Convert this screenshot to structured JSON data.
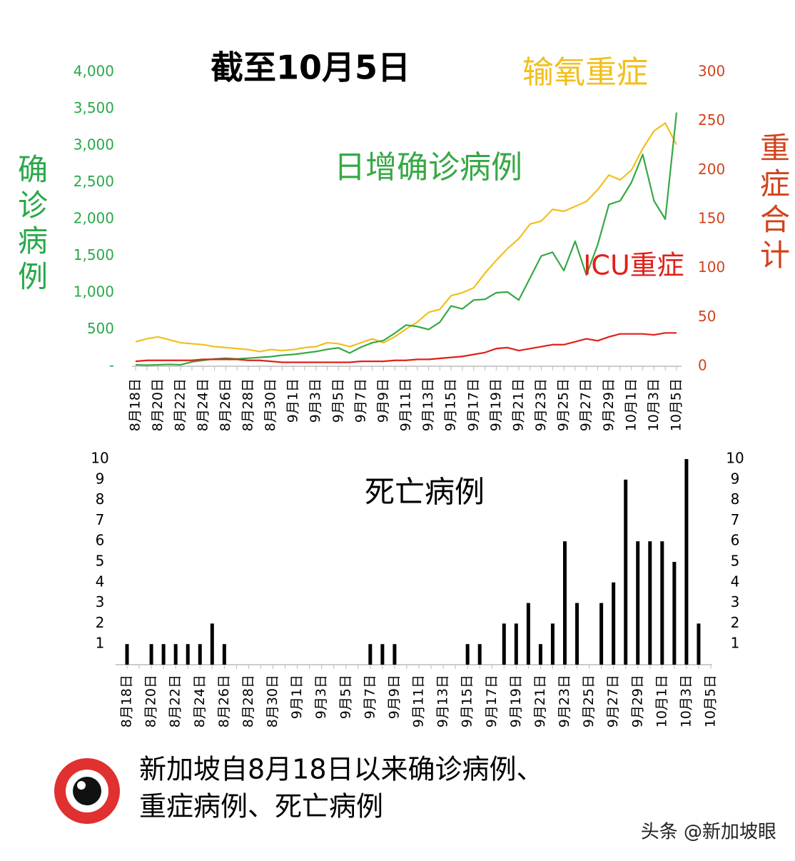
{
  "chart_data": [
    {
      "type": "line",
      "title": "截至10月5日",
      "ylabel": "确诊病例",
      "y2label": "重症合计",
      "categories": [
        "8月18日",
        null,
        "8月20日",
        null,
        "8月22日",
        null,
        "8月24日",
        null,
        "8月26日",
        null,
        "8月28日",
        null,
        "8月30日",
        null,
        "9月1日",
        null,
        "9月3日",
        null,
        "9月5日",
        null,
        "9月7日",
        null,
        "9月9日",
        null,
        "9月11日",
        null,
        "9月13日",
        null,
        "9月15日",
        null,
        "9月17日",
        null,
        "9月19日",
        null,
        "9月21日",
        null,
        "9月23日",
        null,
        "9月25日",
        null,
        "9月27日",
        null,
        "9月29日",
        null,
        "10月1日",
        null,
        "10月3日",
        null,
        "10月5日"
      ],
      "ylim": [
        0,
        4000
      ],
      "yticks": [
        {
          "value": 0,
          "label": "-"
        },
        500,
        {
          "value": 1000,
          "label": "1,000"
        },
        {
          "value": 1500,
          "label": "1,500"
        },
        {
          "value": 2000,
          "label": "2,000"
        },
        {
          "value": 2500,
          "label": "2,500"
        },
        {
          "value": 3000,
          "label": "3,000"
        },
        {
          "value": 3500,
          "label": "3,500"
        },
        {
          "value": 4000,
          "label": "4,000"
        }
      ],
      "y2lim": [
        0,
        300
      ],
      "y2ticks": [
        0,
        50,
        100,
        150,
        200,
        250,
        300
      ],
      "series": [
        {
          "name": "输氧重症",
          "color": "#f2bf1d",
          "axis": "y2",
          "values": [
            25,
            28,
            30,
            27,
            24,
            23,
            22,
            20,
            19,
            18,
            17,
            15,
            17,
            16,
            17,
            19,
            20,
            24,
            23,
            20,
            24,
            28,
            24,
            30,
            38,
            45,
            55,
            58,
            72,
            75,
            80,
            95,
            108,
            120,
            130,
            145,
            148,
            160,
            158,
            163,
            168,
            180,
            195,
            190,
            200,
            222,
            240,
            248,
            226
          ]
        },
        {
          "name": "日增确诊病例",
          "color": "#37a845",
          "values": [
            20,
            15,
            20,
            25,
            20,
            60,
            80,
            100,
            110,
            100,
            110,
            120,
            130,
            150,
            160,
            180,
            200,
            230,
            250,
            180,
            260,
            320,
            350,
            450,
            560,
            540,
            500,
            600,
            820,
            780,
            900,
            910,
            1000,
            1010,
            900,
            1200,
            1500,
            1550,
            1300,
            1700,
            1240,
            1650,
            2200,
            2250,
            2500,
            2880,
            2250,
            2000,
            3450
          ]
        },
        {
          "name": "ICU重症",
          "color": "#e0201b",
          "axis": "y2",
          "values": [
            5,
            6,
            6,
            6,
            6,
            6,
            7,
            7,
            7,
            7,
            6,
            6,
            5,
            4,
            4,
            4,
            4,
            4,
            4,
            4,
            5,
            5,
            5,
            6,
            6,
            7,
            7,
            8,
            9,
            10,
            12,
            14,
            18,
            19,
            16,
            18,
            20,
            22,
            22,
            25,
            28,
            26,
            30,
            33,
            33,
            33,
            32,
            34,
            34
          ]
        }
      ]
    },
    {
      "type": "bar",
      "title": "死亡病例",
      "color": "#000000",
      "categories": [
        "8月18日",
        null,
        "8月20日",
        null,
        "8月22日",
        null,
        "8月24日",
        null,
        "8月26日",
        null,
        "8月28日",
        null,
        "8月30日",
        null,
        "9月1日",
        null,
        "9月3日",
        null,
        "9月5日",
        null,
        "9月7日",
        null,
        "9月9日",
        null,
        "9月11日",
        null,
        "9月13日",
        null,
        "9月15日",
        null,
        "9月17日",
        null,
        "9月19日",
        null,
        "9月21日",
        null,
        "9月23日",
        null,
        "9月25日",
        null,
        "9月27日",
        null,
        "9月29日",
        null,
        "10月1日",
        null,
        "10月3日",
        null,
        "10月5日"
      ],
      "values": [
        1,
        0,
        1,
        1,
        1,
        1,
        1,
        2,
        1,
        0,
        0,
        0,
        0,
        0,
        0,
        0,
        0,
        0,
        0,
        0,
        1,
        1,
        1,
        0,
        0,
        0,
        0,
        0,
        1,
        1,
        0,
        2,
        2,
        3,
        1,
        2,
        6,
        3,
        0,
        3,
        4,
        9,
        6,
        6,
        6,
        5,
        10,
        2,
        0
      ],
      "ylim": [
        0,
        10
      ],
      "yticks": [
        1,
        2,
        3,
        4,
        5,
        6,
        7,
        8,
        9,
        10
      ],
      "y2lim": [
        0,
        10
      ],
      "y2ticks": [
        1,
        2,
        3,
        4,
        5,
        6,
        7,
        8,
        9,
        10
      ]
    }
  ],
  "caption": [
    "新加坡自8月18日以来确诊病例、",
    "重症病例、死亡病例"
  ],
  "watermark": "头条 @新加坡眼"
}
